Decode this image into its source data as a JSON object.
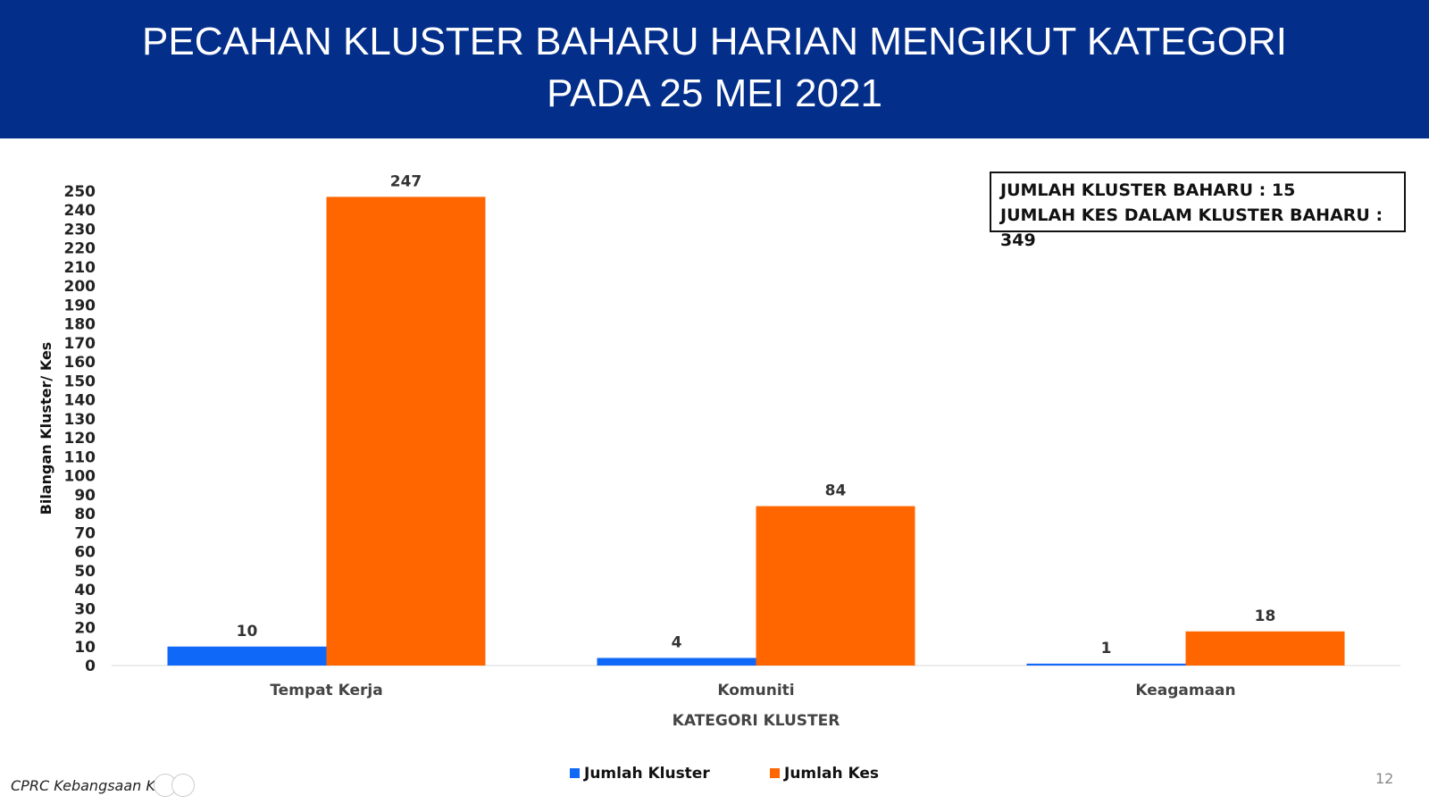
{
  "header": {
    "title_line1": "PECAHAN KLUSTER BAHARU HARIAN MENGIKUT KATEGORI",
    "title_line2": "PADA 25 MEI 2021",
    "background": "#032e8a"
  },
  "info_box": {
    "line1": "JUMLAH KLUSTER BAHARU : 15",
    "line2": "JUMLAH KES DALAM KLUSTER BAHARU : 349"
  },
  "footer": {
    "source": "CPRC Kebangsaan KKM",
    "page_number": "12"
  },
  "chart_data": {
    "type": "bar",
    "categories": [
      "Tempat Kerja",
      "Komuniti",
      "Keagamaan"
    ],
    "series": [
      {
        "name": "Jumlah Kluster",
        "values": [
          10,
          4,
          1
        ],
        "color": "#0f68f7"
      },
      {
        "name": "Jumlah Kes",
        "values": [
          247,
          84,
          18
        ],
        "color": "#ff6600"
      }
    ],
    "xlabel": "KATEGORI KLUSTER",
    "ylabel": "Bilangan Kluster/ Kes",
    "ylim": [
      0,
      250
    ],
    "ytick_step": 10,
    "yticks": [
      "0",
      "10",
      "20",
      "30",
      "40",
      "50",
      "60",
      "70",
      "80",
      "90",
      "100",
      "110",
      "120",
      "130",
      "140",
      "150",
      "160",
      "170",
      "180",
      "190",
      "200",
      "210",
      "220",
      "230",
      "240",
      "250"
    ],
    "legend_position": "bottom",
    "grid": false,
    "data_labels": true
  }
}
